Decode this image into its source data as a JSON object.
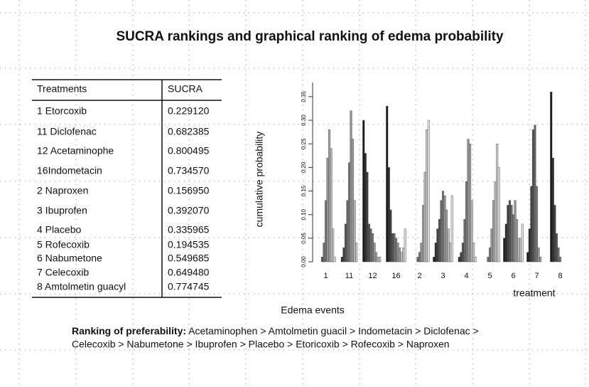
{
  "title": "SUCRA rankings and graphical ranking of edema probability",
  "table": {
    "header": [
      "Treatments",
      "SUCRA"
    ],
    "rows": [
      [
        "1 Etorcoxib",
        "0.229120"
      ],
      [
        "11 Diclofenac",
        "0.682385"
      ],
      [
        "12 Acetaminophe",
        "0.800495"
      ],
      [
        "16Indometacin",
        "0.734570"
      ],
      [
        "2 Naproxen",
        "0.156950"
      ],
      [
        "3 Ibuprofen",
        "0.392070"
      ],
      [
        "4 Placebo",
        "0.335965"
      ],
      [
        "5 Rofecoxib",
        "0.194535"
      ],
      [
        "6 Nabumetone",
        "0.549685"
      ],
      [
        "7 Celecoxib",
        "0.649480"
      ],
      [
        "8 Amtolmetin guacyl",
        "0.774745"
      ]
    ]
  },
  "chart_data": {
    "type": "bar",
    "y_label": "cumulative probability",
    "x_label": "treatment",
    "categories": [
      "1",
      "11",
      "12",
      "16",
      "2",
      "3",
      "4",
      "5",
      "6",
      "7",
      "8"
    ],
    "ylim": [
      0,
      0.38
    ],
    "yticks": [
      {
        "value": 0,
        "label": "0.00"
      },
      {
        "value": 0.05,
        "label": "0.05"
      },
      {
        "value": 0.1,
        "label": "0.10"
      },
      {
        "value": 0.15,
        "label": "0.15"
      },
      {
        "value": 0.2,
        "label": "0.20"
      },
      {
        "value": 0.25,
        "label": "0.25"
      },
      {
        "value": 0.3,
        "label": "0.30"
      },
      {
        "value": 0.35,
        "label": "0.35"
      }
    ],
    "series": [
      {
        "color": "#1a1a1a",
        "values": [
          0,
          0,
          0.3,
          0.33,
          0,
          0.01,
          0,
          0,
          0.05,
          0.02,
          0.36
        ]
      },
      {
        "color": "#2e2e2e",
        "values": [
          0,
          0.01,
          0.23,
          0.2,
          0,
          0.04,
          0.01,
          0,
          0.08,
          0.07,
          0.22
        ]
      },
      {
        "color": "#424242",
        "values": [
          0,
          0.03,
          0.19,
          0.11,
          0,
          0.07,
          0.02,
          0,
          0.12,
          0.16,
          0.12
        ]
      },
      {
        "color": "#565656",
        "values": [
          0.01,
          0.08,
          0.08,
          0.06,
          0,
          0.09,
          0.04,
          0,
          0.13,
          0.28,
          0.06
        ]
      },
      {
        "color": "#6a6a6a",
        "values": [
          0.04,
          0.13,
          0.07,
          0.06,
          0.01,
          0.13,
          0.09,
          0.01,
          0.12,
          0.29,
          0.03
        ]
      },
      {
        "color": "#7e7e7e",
        "values": [
          0.13,
          0.21,
          0.06,
          0.05,
          0.02,
          0.15,
          0.17,
          0.03,
          0.1,
          0.16,
          0.01
        ]
      },
      {
        "color": "#929292",
        "values": [
          0.22,
          0.32,
          0.04,
          0.04,
          0.04,
          0.14,
          0.26,
          0.07,
          0.13,
          0.03,
          0
        ]
      },
      {
        "color": "#a6a6a6",
        "values": [
          0.28,
          0.26,
          0.02,
          0.03,
          0.12,
          0.11,
          0.25,
          0.13,
          0.09,
          0.01,
          0
        ]
      },
      {
        "color": "#bababa",
        "values": [
          0.24,
          0.13,
          0.01,
          0.02,
          0.19,
          0.07,
          0.13,
          0.17,
          0.05,
          0,
          0
        ]
      },
      {
        "color": "#cecece",
        "values": [
          0.07,
          0.04,
          0.01,
          0.03,
          0.28,
          0.04,
          0.04,
          0.25,
          0.05,
          0,
          0
        ]
      },
      {
        "color": "#e2e2e2",
        "values": [
          0.01,
          0,
          0,
          0.07,
          0.3,
          0.14,
          0.01,
          0.2,
          0.08,
          0,
          0
        ]
      }
    ]
  },
  "caption": "Edema events",
  "ranking": {
    "label": "Ranking of preferability:",
    "line1": "Acetaminophen > Amtolmetin guacil > Indometacin > Diclofenac >",
    "line2": "Celecoxib > Nabumetone > Ibuprofen > Placebo > Etoricoxib > Rofecoxib > Naproxen"
  }
}
